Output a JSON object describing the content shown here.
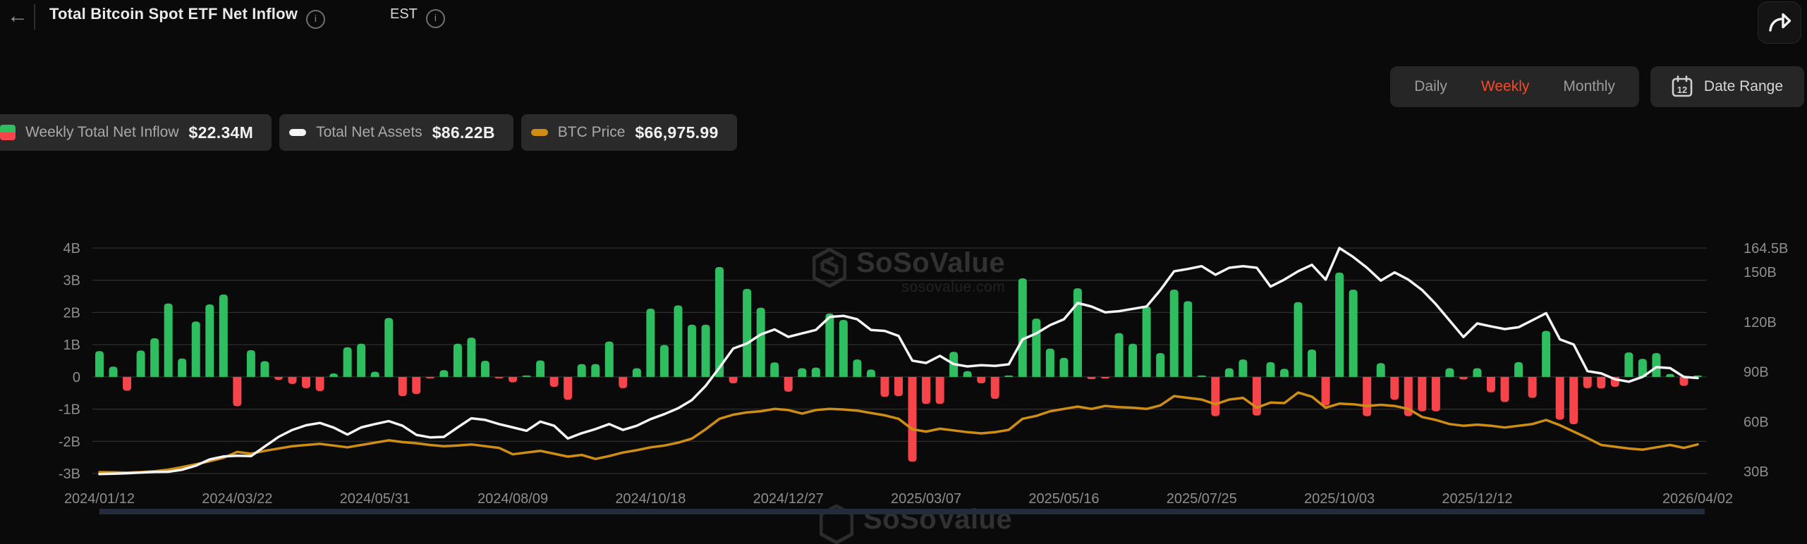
{
  "header": {
    "title": "Total Bitcoin Spot ETF Net Inflow",
    "timezone_label": "EST"
  },
  "toolbar": {
    "period_tabs": [
      {
        "label": "Daily",
        "active": false
      },
      {
        "label": "Weekly",
        "active": true
      },
      {
        "label": "Monthly",
        "active": false
      }
    ],
    "date_range_label": "Date Range",
    "calendar_day": "12"
  },
  "legend": {
    "items": [
      {
        "label": "Weekly Total Net Inflow",
        "value": "$22.34M",
        "swatch": "green-red-split"
      },
      {
        "label": "Total Net Assets",
        "value": "$86.22B",
        "swatch": "white-dash"
      },
      {
        "label": "BTC Price",
        "value": "$66,975.99",
        "swatch": "gold-dash"
      }
    ]
  },
  "watermark": {
    "name": "SoSoValue",
    "domain": "sosovalue.com"
  },
  "colors": {
    "accent": "#F44B2A",
    "bar_positive": "#2EBD5F",
    "bar_negative": "#F5454A",
    "net_assets_line": "#F5F5F5",
    "btc_line": "#CE8E14",
    "grid": "#383838",
    "axis_text": "#8E8E8E"
  },
  "chart_data": {
    "type": "bar",
    "title": "Total Bitcoin Spot ETF Net Inflow (Weekly)",
    "x_tick_labels": [
      "2024/01/12",
      "2024/03/22",
      "2024/05/31",
      "2024/08/09",
      "2024/10/18",
      "2024/12/27",
      "2025/03/07",
      "2025/05/16",
      "2025/07/25",
      "2025/10/03",
      "2025/12/12",
      "2026/04/02"
    ],
    "x_tick_week_index": [
      0,
      10,
      20,
      30,
      40,
      50,
      60,
      70,
      80,
      90,
      100,
      116
    ],
    "total_weeks": 117,
    "left_axis": {
      "ticks": [
        "4B",
        "3B",
        "2B",
        "1B",
        "0",
        "-1B",
        "-2B",
        "-3B"
      ],
      "tick_values": [
        4,
        3,
        2,
        1,
        0,
        -1,
        -2,
        -3
      ],
      "range": [
        -3,
        4
      ],
      "unit": "USD billions"
    },
    "right_axis": {
      "ticks": [
        "164.5B",
        "150B",
        "120B",
        "90B",
        "60B",
        "30B"
      ],
      "tick_values": [
        164.5,
        150,
        120,
        90,
        60,
        30
      ],
      "range": [
        30,
        164.5
      ],
      "unit": "USD billions"
    },
    "btc_hidden_axis_range_kusd": [
      42,
      235
    ],
    "grid": true,
    "legend_position": "top-left",
    "series": [
      {
        "name": "Weekly Total Net Inflow",
        "type": "bar",
        "unit": "USD billions",
        "current_value_label": "$22.34M",
        "values": [
          0.8,
          0.32,
          -0.43,
          0.82,
          1.2,
          2.28,
          0.57,
          1.72,
          2.25,
          2.56,
          -0.91,
          0.83,
          0.49,
          -0.09,
          -0.22,
          -0.35,
          -0.44,
          0.11,
          0.92,
          1.03,
          0.16,
          1.83,
          -0.6,
          -0.53,
          -0.03,
          0.21,
          1.03,
          1.22,
          0.5,
          -0.04,
          -0.17,
          0.04,
          0.51,
          -0.31,
          -0.71,
          0.4,
          0.4,
          1.1,
          -0.35,
          0.27,
          2.12,
          0.99,
          2.22,
          1.62,
          1.62,
          3.41,
          -0.2,
          2.73,
          2.15,
          0.45,
          -0.46,
          0.27,
          0.29,
          1.97,
          1.77,
          0.54,
          0.23,
          -0.62,
          -0.6,
          -2.63,
          -0.84,
          -0.84,
          0.78,
          0.18,
          -0.2,
          -0.68,
          0.03,
          3.06,
          1.81,
          0.88,
          0.59,
          2.75,
          -0.07,
          -0.05,
          1.36,
          1.03,
          2.19,
          0.74,
          2.71,
          2.35,
          0.04,
          -1.22,
          0.27,
          0.54,
          -1.2,
          0.46,
          0.25,
          2.32,
          0.85,
          -0.89,
          3.24,
          2.71,
          -1.22,
          0.43,
          -0.71,
          -1.22,
          -1.07,
          -1.07,
          0.27,
          -0.08,
          0.27,
          -0.48,
          -0.78,
          0.46,
          -0.65,
          1.43,
          -1.33,
          -1.47,
          -0.35,
          -0.36,
          -0.31,
          0.76,
          0.56,
          0.74,
          0.09,
          -0.28,
          0.02
        ]
      },
      {
        "name": "Total Net Assets",
        "type": "line",
        "axis": "right",
        "unit": "USD billions",
        "current_value_label": "$86.22B",
        "values": [
          28.4,
          28.6,
          28.9,
          29.3,
          29.7,
          29.8,
          31.0,
          33.5,
          37.2,
          39.0,
          39.4,
          39.2,
          45.0,
          50.8,
          55.0,
          57.8,
          59.2,
          56.4,
          52.2,
          56.5,
          58.5,
          60.3,
          57.5,
          52.0,
          50.5,
          50.8,
          56.5,
          62.0,
          61.0,
          58.5,
          56.5,
          54.5,
          60.0,
          57.5,
          49.8,
          53.0,
          55.5,
          58.5,
          55.0,
          57.5,
          61.5,
          64.5,
          68.0,
          73.0,
          81.5,
          92.5,
          104.0,
          107.0,
          112.5,
          115.5,
          111.0,
          113.1,
          115.2,
          123.0,
          123.7,
          121.6,
          115.2,
          114.6,
          111.6,
          96.7,
          95.3,
          99.6,
          94.6,
          93.2,
          94.0,
          93.5,
          94.5,
          109.5,
          113.1,
          118.1,
          121.6,
          131.4,
          129.3,
          125.8,
          126.5,
          127.9,
          129.3,
          139.2,
          150.5,
          151.9,
          153.6,
          148.4,
          152.6,
          153.6,
          152.6,
          141.3,
          145.5,
          150.5,
          154.4,
          145.5,
          164.5,
          159.1,
          152.6,
          144.9,
          149.8,
          145.5,
          139.2,
          130.7,
          120.8,
          110.9,
          119.1,
          117.3,
          115.7,
          116.8,
          121.0,
          125.3,
          109.5,
          106.4,
          90.4,
          89.0,
          85.5,
          84.0,
          86.9,
          92.8,
          92.2,
          86.9,
          86.22
        ]
      },
      {
        "name": "BTC Price",
        "type": "line",
        "axis": "hidden",
        "unit": "USD thousands",
        "current_value_label": "$66,975.99",
        "values": [
          43.2,
          43.0,
          42.8,
          43.2,
          44.0,
          45.3,
          47.5,
          50.0,
          52.5,
          55.5,
          60.5,
          59.0,
          61.5,
          63.5,
          65.5,
          66.5,
          67.5,
          66.0,
          64.5,
          66.5,
          68.5,
          70.5,
          69.0,
          68.0,
          66.5,
          65.5,
          66.0,
          67.0,
          65.5,
          64.0,
          58.5,
          60.0,
          61.5,
          59.0,
          56.5,
          58.0,
          54.5,
          57.0,
          60.0,
          62.0,
          64.5,
          66.0,
          68.5,
          72.0,
          80.0,
          89.0,
          92.5,
          94.5,
          95.5,
          97.5,
          96.5,
          93.5,
          96.5,
          97.5,
          97.0,
          96.0,
          94.0,
          92.0,
          89.0,
          80.0,
          78.0,
          80.5,
          79.0,
          77.5,
          76.5,
          77.5,
          79.5,
          89.0,
          91.5,
          95.5,
          97.5,
          99.5,
          97.5,
          100.0,
          99.0,
          98.5,
          97.5,
          100.5,
          108.5,
          107.0,
          105.5,
          101.5,
          105.5,
          107.0,
          98.5,
          103.0,
          102.5,
          111.5,
          108.0,
          98.5,
          102.0,
          101.5,
          100.0,
          101.0,
          100.0,
          97.5,
          90.5,
          88.0,
          84.5,
          83.0,
          84.0,
          83.0,
          81.5,
          83.0,
          84.5,
          88.0,
          83.5,
          78.0,
          72.5,
          66.5,
          65.0,
          63.5,
          62.5,
          64.5,
          66.5,
          64.0,
          66.976
        ]
      }
    ]
  }
}
